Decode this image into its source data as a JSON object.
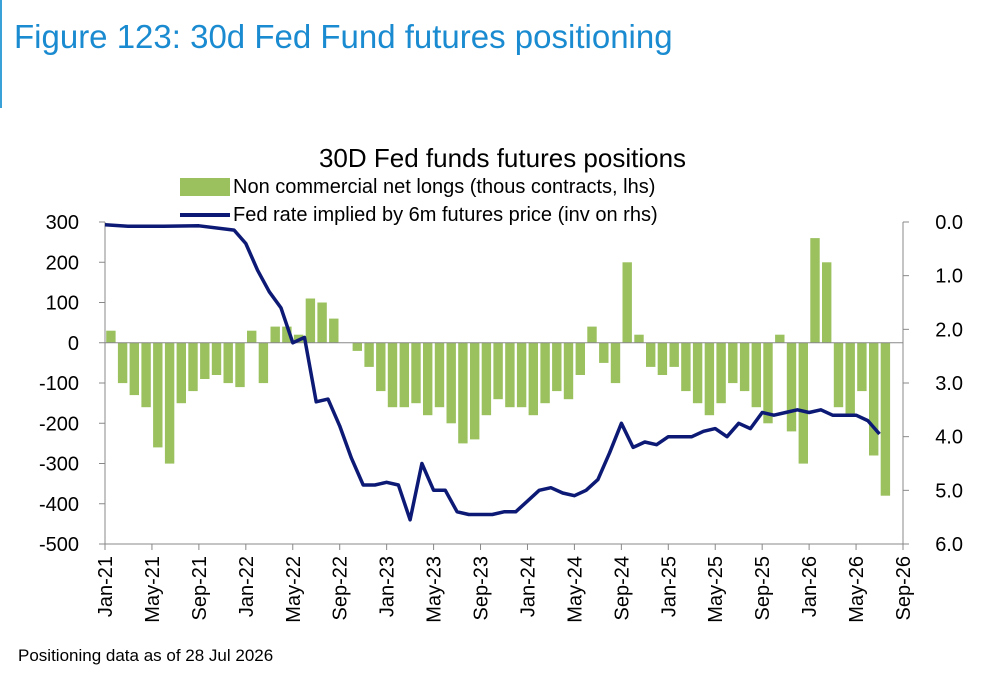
{
  "figure_title": "Figure 123: 30d Fed Fund futures positioning",
  "footnote": "Positioning data as of 28 Jul 2026",
  "colors": {
    "figure_title": "#1a8bd0",
    "bars": "#9bc05e",
    "line": "#0d1a75"
  },
  "chart_data": {
    "type": "bar",
    "title": "30D Fed funds futures positions",
    "legend_position": "top-center",
    "grid": false,
    "x_ticks": [
      "Jan-21",
      "May-21",
      "Sep-21",
      "Jan-22",
      "May-22",
      "Sep-22",
      "Jan-23",
      "May-23",
      "Sep-23",
      "Jan-24",
      "May-24",
      "Sep-24",
      "Jan-25",
      "May-25",
      "Sep-25",
      "Jan-26",
      "May-26",
      "Sep-26"
    ],
    "x_range": [
      "2021-01",
      "2026-09"
    ],
    "y_left": {
      "label": "",
      "ylim": [
        -500,
        300
      ],
      "ticks": [
        300,
        200,
        100,
        0,
        -100,
        -200,
        -300,
        -400,
        -500
      ]
    },
    "y_right": {
      "label": "",
      "ylim": [
        0.0,
        6.0
      ],
      "inverted": true,
      "ticks": [
        "0.0",
        "1.0",
        "2.0",
        "3.0",
        "4.0",
        "5.0",
        "6.0"
      ]
    },
    "series": [
      {
        "name": "Non commercial net longs (thous contracts, lhs)",
        "type": "bar",
        "axis": "left",
        "x": [
          "2021-01",
          "2021-02",
          "2021-03",
          "2021-04",
          "2021-05",
          "2021-06",
          "2021-07",
          "2021-08",
          "2021-09",
          "2021-10",
          "2021-11",
          "2021-12",
          "2022-01",
          "2022-02",
          "2022-03",
          "2022-04",
          "2022-05",
          "2022-06",
          "2022-07",
          "2022-08",
          "2022-09",
          "2022-10",
          "2022-11",
          "2022-12",
          "2023-01",
          "2023-02",
          "2023-03",
          "2023-04",
          "2023-05",
          "2023-06",
          "2023-07",
          "2023-08",
          "2023-09",
          "2023-10",
          "2023-11",
          "2023-12",
          "2024-01",
          "2024-02",
          "2024-03",
          "2024-04",
          "2024-05",
          "2024-06",
          "2024-07",
          "2024-08",
          "2024-09",
          "2024-10",
          "2024-11",
          "2024-12",
          "2025-01",
          "2025-02",
          "2025-03",
          "2025-04",
          "2025-05",
          "2025-06",
          "2025-07",
          "2025-08",
          "2025-09",
          "2025-10",
          "2025-11",
          "2025-12",
          "2026-01",
          "2026-02",
          "2026-03",
          "2026-04",
          "2026-05",
          "2026-06",
          "2026-07"
        ],
        "values": [
          30,
          -100,
          -130,
          -160,
          -260,
          -300,
          -150,
          -120,
          -90,
          -80,
          -100,
          -110,
          30,
          -100,
          40,
          40,
          20,
          110,
          100,
          60,
          0,
          -20,
          -60,
          -120,
          -160,
          -160,
          -150,
          -180,
          -160,
          -200,
          -250,
          -240,
          -180,
          -140,
          -160,
          -160,
          -180,
          -150,
          -120,
          -140,
          -80,
          40,
          -50,
          -100,
          200,
          20,
          -60,
          -80,
          -60,
          -120,
          -150,
          -180,
          -150,
          -100,
          -120,
          -160,
          -200,
          20,
          -220,
          -300,
          260,
          200,
          -160,
          -180,
          -120,
          -280,
          -380
        ]
      },
      {
        "name": "Fed rate implied by 6m futures price (inv on rhs)",
        "type": "line",
        "axis": "right",
        "x": [
          "2021-01",
          "2021-03",
          "2021-06",
          "2021-09",
          "2021-12",
          "2022-01",
          "2022-02",
          "2022-03",
          "2022-04",
          "2022-05",
          "2022-06",
          "2022-07",
          "2022-08",
          "2022-09",
          "2022-10",
          "2022-11",
          "2022-12",
          "2023-01",
          "2023-02",
          "2023-03",
          "2023-04",
          "2023-05",
          "2023-06",
          "2023-07",
          "2023-08",
          "2023-09",
          "2023-10",
          "2023-11",
          "2023-12",
          "2024-01",
          "2024-02",
          "2024-03",
          "2024-04",
          "2024-05",
          "2024-06",
          "2024-07",
          "2024-08",
          "2024-09",
          "2024-10",
          "2024-11",
          "2024-12",
          "2025-01",
          "2025-02",
          "2025-03",
          "2025-04",
          "2025-05",
          "2025-06",
          "2025-07",
          "2025-08",
          "2025-09",
          "2025-10",
          "2025-11",
          "2025-12",
          "2026-01",
          "2026-02",
          "2026-03",
          "2026-04",
          "2026-05",
          "2026-06",
          "2026-07"
        ],
        "values": [
          0.05,
          0.08,
          0.08,
          0.07,
          0.15,
          0.4,
          0.9,
          1.3,
          1.6,
          2.25,
          2.15,
          3.35,
          3.3,
          3.8,
          4.4,
          4.9,
          4.9,
          4.85,
          4.9,
          5.55,
          4.5,
          5.0,
          5.0,
          5.4,
          5.45,
          5.45,
          5.45,
          5.4,
          5.4,
          5.2,
          5.0,
          4.95,
          5.05,
          5.1,
          5.0,
          4.8,
          4.3,
          3.75,
          4.2,
          4.1,
          4.15,
          4.0,
          4.0,
          4.0,
          3.9,
          3.85,
          4.0,
          3.75,
          3.85,
          3.55,
          3.6,
          3.55,
          3.5,
          3.55,
          3.5,
          3.6,
          3.6,
          3.6,
          3.7,
          3.95
        ]
      }
    ]
  }
}
